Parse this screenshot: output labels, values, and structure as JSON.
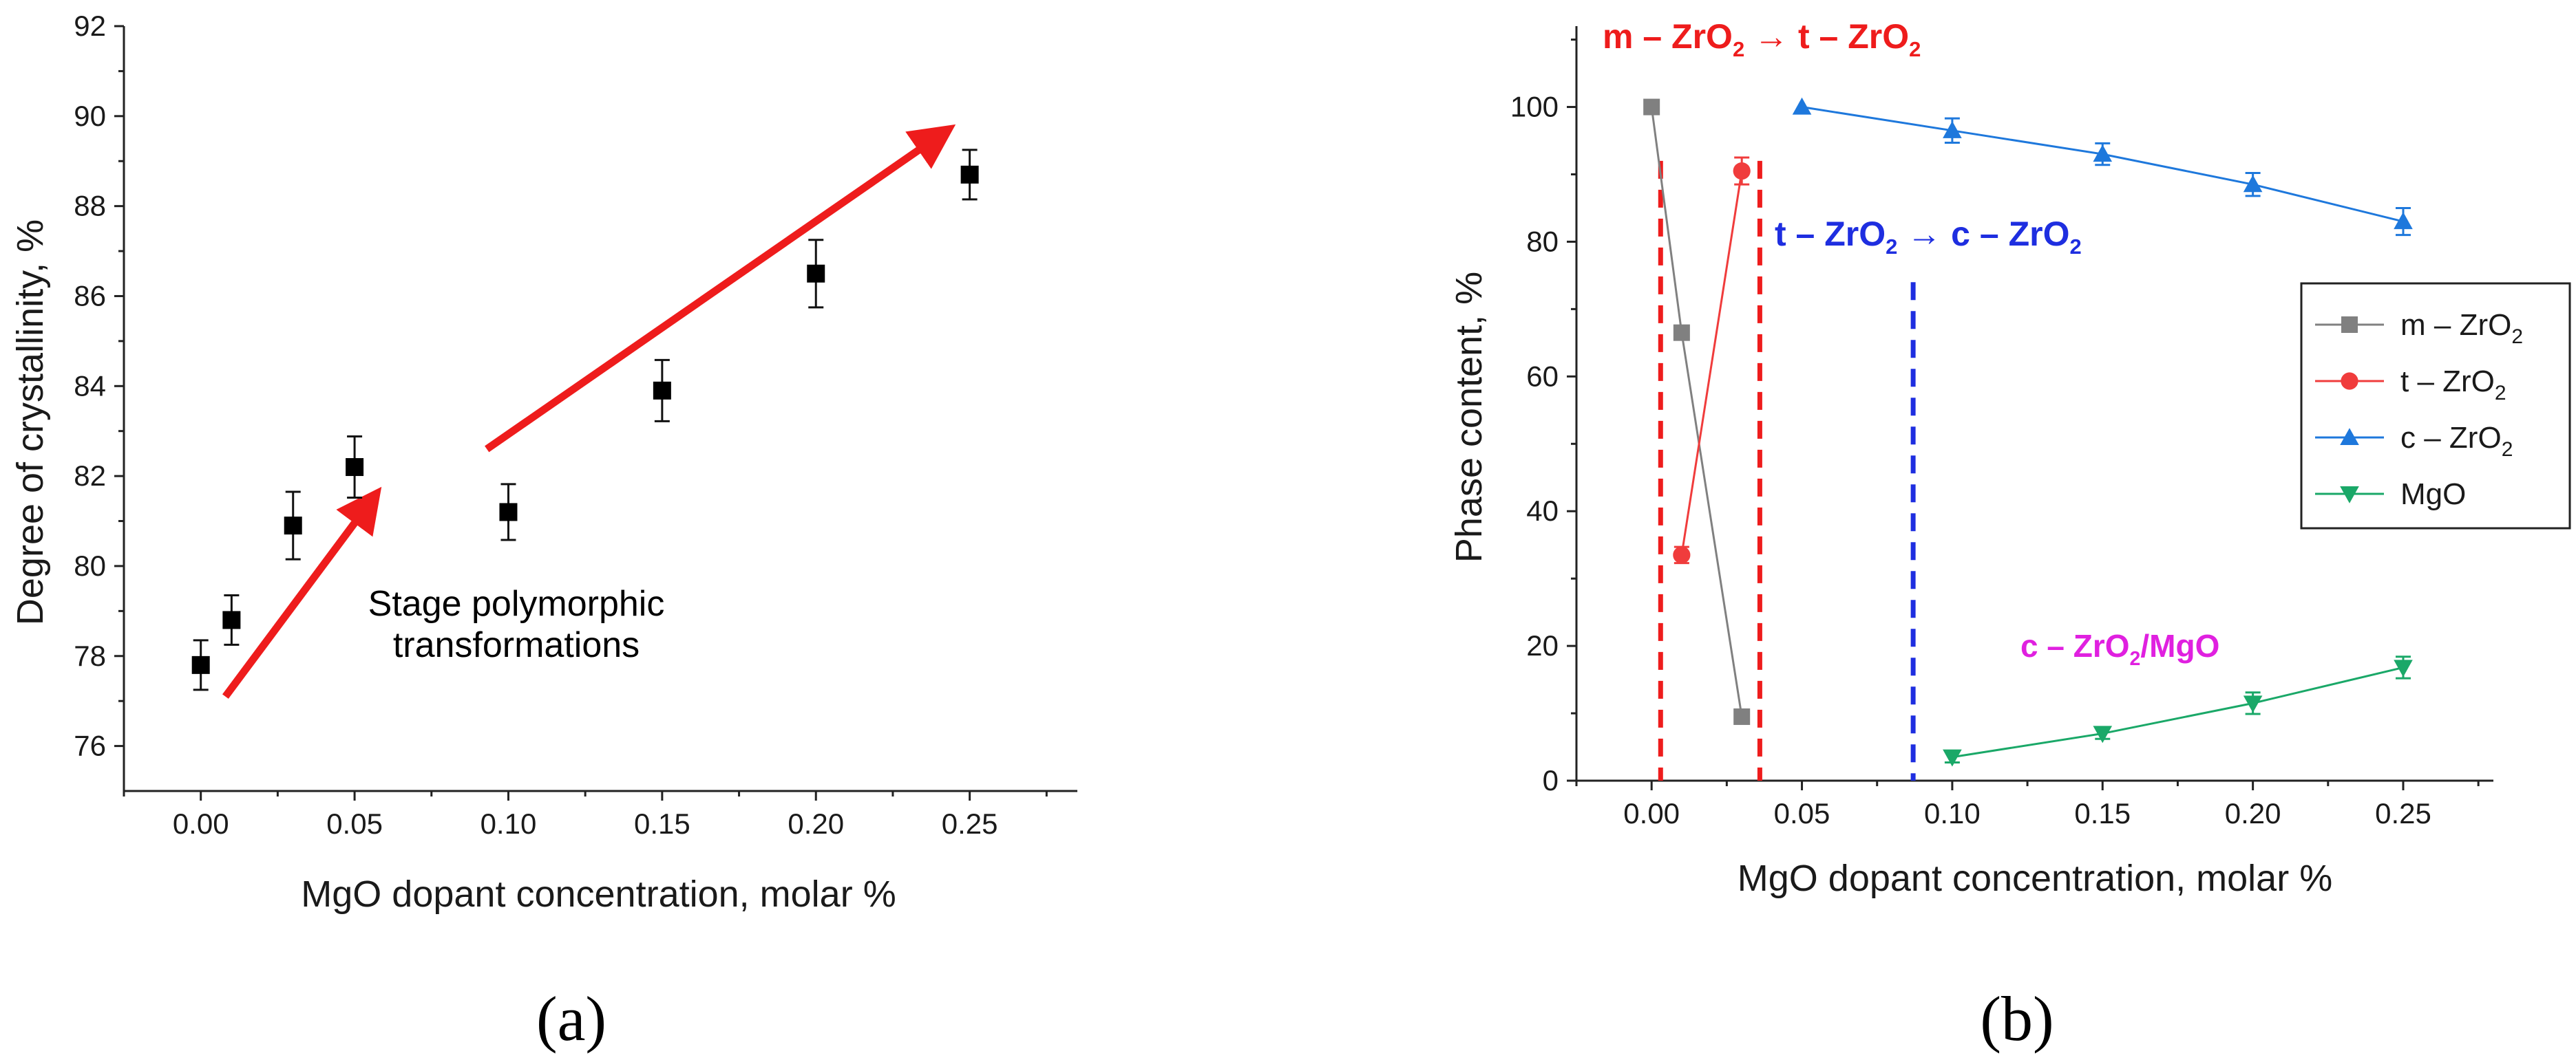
{
  "chart_data": [
    {
      "id": "a",
      "panel_label": "(a)",
      "type": "scatter",
      "xlabel": "MgO dopant concentration, molar %",
      "ylabel": "Degree of crystallinity, %",
      "xlim": [
        -0.025,
        0.285
      ],
      "ylim": [
        75,
        92
      ],
      "xticks": [
        0.0,
        0.05,
        0.1,
        0.15,
        0.2,
        0.25
      ],
      "xtick_labels": [
        "0.00",
        "0.05",
        "0.10",
        "0.15",
        "0.20",
        "0.25"
      ],
      "yticks": [
        76,
        78,
        80,
        82,
        84,
        86,
        88,
        90,
        92
      ],
      "ytick_labels": [
        "76",
        "78",
        "80",
        "82",
        "84",
        "86",
        "88",
        "90",
        "92"
      ],
      "series": [
        {
          "name": "Degree of crystallinity",
          "color": "#000000",
          "marker": "square",
          "x": [
            0.0,
            0.01,
            0.03,
            0.05,
            0.1,
            0.15,
            0.2,
            0.25
          ],
          "y": [
            77.8,
            78.8,
            80.9,
            82.2,
            81.2,
            83.9,
            86.5,
            88.7
          ],
          "err": [
            0.55,
            0.55,
            0.75,
            0.68,
            0.62,
            0.68,
            0.75,
            0.55
          ]
        }
      ],
      "arrows": [
        {
          "color": "#ee1c1c",
          "from": [
            0.008,
            77.1
          ],
          "to": [
            0.057,
            81.6
          ]
        },
        {
          "color": "#ee1c1c",
          "from": [
            0.093,
            82.6
          ],
          "to": [
            0.243,
            89.7
          ]
        }
      ],
      "annotations": [
        {
          "lines": [
            "Stage polymorphic",
            "transformations"
          ],
          "x": 0.1,
          "y": 79.3,
          "color": "#000000"
        }
      ]
    },
    {
      "id": "b",
      "panel_label": "(b)",
      "type": "line",
      "xlabel": "MgO dopant concentration, molar %",
      "ylabel": "Phase content, %",
      "xlim": [
        -0.025,
        0.28
      ],
      "ylim": [
        0,
        112
      ],
      "xticks": [
        0.0,
        0.05,
        0.1,
        0.15,
        0.2,
        0.25
      ],
      "xtick_labels": [
        "0.00",
        "0.05",
        "0.10",
        "0.15",
        "0.20",
        "0.25"
      ],
      "yticks": [
        0,
        20,
        40,
        60,
        80,
        100
      ],
      "ytick_labels": [
        "0",
        "20",
        "40",
        "60",
        "80",
        "100"
      ],
      "series": [
        {
          "name": "m – ZrO",
          "sub": "2",
          "color": "#808080",
          "marker": "square",
          "x": [
            0.0,
            0.01,
            0.03
          ],
          "y": [
            100,
            66.5,
            9.5
          ],
          "err": [
            0,
            0,
            0
          ]
        },
        {
          "name": "t – ZrO",
          "sub": "2",
          "color": "#f03c3c",
          "marker": "circle",
          "x": [
            0.01,
            0.03
          ],
          "y": [
            33.5,
            90.5
          ],
          "err": [
            1.2,
            2.0
          ]
        },
        {
          "name": "c – ZrO",
          "sub": "2",
          "color": "#1e78dc",
          "marker": "triangle-up",
          "x": [
            0.05,
            0.1,
            0.15,
            0.2,
            0.25
          ],
          "y": [
            100,
            96.5,
            93,
            88.5,
            83
          ],
          "err": [
            0,
            1.8,
            1.6,
            1.7,
            2.0
          ]
        },
        {
          "name": "MgO",
          "sub": "",
          "color": "#1aa868",
          "marker": "triangle-down",
          "x": [
            0.1,
            0.15,
            0.2,
            0.25
          ],
          "y": [
            3.5,
            7,
            11.5,
            16.8
          ],
          "err": [
            0.8,
            0.8,
            1.6,
            1.6
          ]
        }
      ],
      "vlines": [
        {
          "x": 0.003,
          "color": "#ee1c1c",
          "y0": 0,
          "y1": 92
        },
        {
          "x": 0.036,
          "color": "#ee1c1c",
          "y0": 0,
          "y1": 92
        },
        {
          "x": 0.087,
          "color": "#1e2ee0",
          "y0": 0,
          "y1": 74
        }
      ],
      "annotations": [
        {
          "id": "m-to-t",
          "color": "#ee1c1c",
          "parts": [
            {
              "t": "m – ZrO"
            },
            {
              "t": "2",
              "sub": true
            },
            {
              "t": " → t – ZrO"
            },
            {
              "t": "2",
              "sub": true
            }
          ]
        },
        {
          "id": "t-to-c",
          "color": "#1e2ee0",
          "parts": [
            {
              "t": "t – ZrO"
            },
            {
              "t": "2",
              "sub": true
            },
            {
              "t": " → c – ZrO"
            },
            {
              "t": "2",
              "sub": true
            }
          ]
        },
        {
          "id": "c-mgo",
          "color": "#e020e0",
          "parts": [
            {
              "t": "c – ZrO"
            },
            {
              "t": "2",
              "sub": true
            },
            {
              "t": "/MgO"
            }
          ]
        }
      ]
    }
  ]
}
